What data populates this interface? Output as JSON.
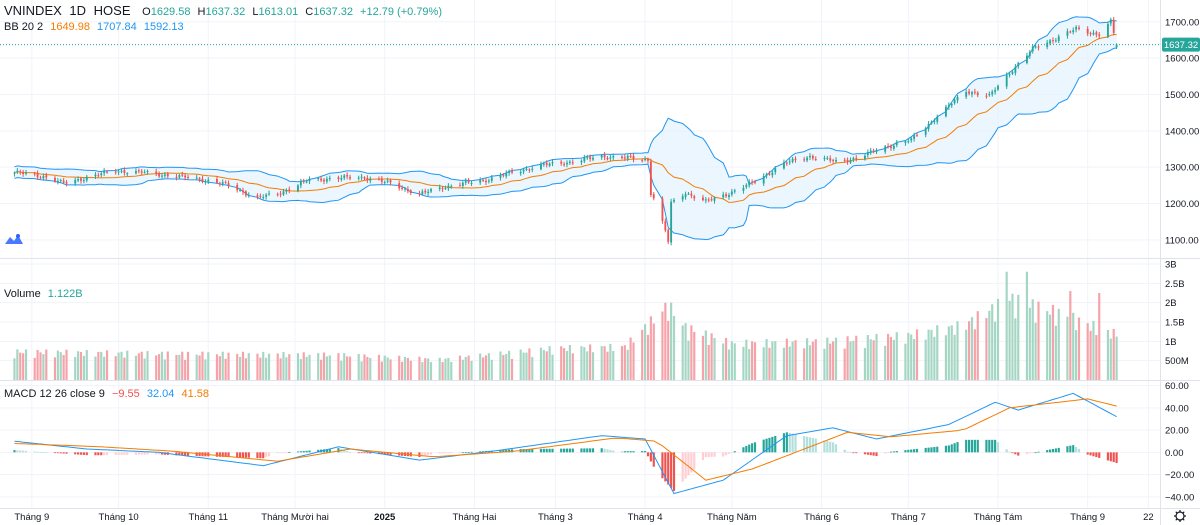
{
  "header": {
    "symbol": "VNINDEX",
    "interval": "1D",
    "exchange": "HOSE",
    "open_label": "O",
    "open": "1629.58",
    "high_label": "H",
    "high": "1637.32",
    "low_label": "L",
    "low": "1613.01",
    "close_label": "C",
    "close": "1637.32",
    "change": "+12.79 (+0.79%)"
  },
  "bb_legend": {
    "label": "BB 20 2",
    "basis": "1649.98",
    "upper": "1707.84",
    "lower": "1592.13"
  },
  "volume_legend": {
    "label": "Volume",
    "value": "1.122B"
  },
  "macd_legend": {
    "label": "MACD 12 26 close 9",
    "hist": "−9.55",
    "macd": "32.04",
    "signal": "41.58"
  },
  "last_price_tag": "1637.32",
  "colors": {
    "up": "#26a69a",
    "down": "#ef5350",
    "vol_up": "#a5d6c4",
    "vol_down": "#f5a3a8",
    "bb_band": "#2196f3",
    "bb_fill": "#e3f2fd",
    "bb_basis": "#f57c00",
    "macd_line": "#2196f3",
    "signal_line": "#f57c00",
    "hist_up_strong": "#26a69a",
    "hist_up_weak": "#b2dfdb",
    "hist_down_strong": "#ef5350",
    "hist_down_weak": "#ffcdd2",
    "grid": "#f0f3fa",
    "axis_text": "#131722"
  },
  "chart_data": [
    {
      "type": "candlestick",
      "panel": "price",
      "title": "VNINDEX",
      "ylim": [
        1050,
        1760
      ],
      "yticks": [
        1100,
        1200,
        1300,
        1400,
        1500,
        1600,
        1700
      ],
      "ytick_labels": [
        "1100.00",
        "1200.00",
        "1300.00",
        "1400.00",
        "1500.00",
        "1600.00",
        "1700.00"
      ],
      "last_price": 1637.32,
      "xticks": [
        {
          "label": "Tháng 9",
          "date": "2024-09-01"
        },
        {
          "label": "Tháng 10",
          "date": "2024-10-01"
        },
        {
          "label": "Tháng 11",
          "date": "2024-11-01"
        },
        {
          "label": "Tháng Mười hai",
          "date": "2024-12-01"
        },
        {
          "label": "2025",
          "date": "2025-01-01"
        },
        {
          "label": "Tháng Hai",
          "date": "2025-02-01"
        },
        {
          "label": "Tháng 3",
          "date": "2025-03-01"
        },
        {
          "label": "Tháng 4",
          "date": "2025-04-01"
        },
        {
          "label": "Tháng Năm",
          "date": "2025-05-01"
        },
        {
          "label": "Tháng 6",
          "date": "2025-06-01"
        },
        {
          "label": "Tháng 7",
          "date": "2025-07-01"
        },
        {
          "label": "Tháng Tám",
          "date": "2025-08-01"
        },
        {
          "label": "Tháng 9",
          "date": "2025-09-01"
        },
        {
          "label": "22",
          "date": "2025-09-22"
        }
      ],
      "close_keypoints": [
        {
          "date": "2024-08-26",
          "close": 1285
        },
        {
          "date": "2024-09-05",
          "close": 1275
        },
        {
          "date": "2024-09-12",
          "close": 1255
        },
        {
          "date": "2024-09-20",
          "close": 1272
        },
        {
          "date": "2024-09-30",
          "close": 1290
        },
        {
          "date": "2024-10-10",
          "close": 1285
        },
        {
          "date": "2024-10-21",
          "close": 1275
        },
        {
          "date": "2024-10-31",
          "close": 1265
        },
        {
          "date": "2024-11-08",
          "close": 1250
        },
        {
          "date": "2024-11-18",
          "close": 1215
        },
        {
          "date": "2024-11-26",
          "close": 1230
        },
        {
          "date": "2024-12-06",
          "close": 1265
        },
        {
          "date": "2024-12-16",
          "close": 1270
        },
        {
          "date": "2024-12-25",
          "close": 1272
        },
        {
          "date": "2025-01-03",
          "close": 1255
        },
        {
          "date": "2025-01-13",
          "close": 1225
        },
        {
          "date": "2025-01-21",
          "close": 1245
        },
        {
          "date": "2025-02-05",
          "close": 1265
        },
        {
          "date": "2025-02-14",
          "close": 1285
        },
        {
          "date": "2025-02-24",
          "close": 1305
        },
        {
          "date": "2025-03-07",
          "close": 1315
        },
        {
          "date": "2025-03-17",
          "close": 1330
        },
        {
          "date": "2025-03-26",
          "close": 1325
        },
        {
          "date": "2025-04-02",
          "close": 1320
        },
        {
          "date": "2025-04-03",
          "close": 1230
        },
        {
          "date": "2025-04-04",
          "close": 1215
        },
        {
          "date": "2025-04-08",
          "close": 1125
        },
        {
          "date": "2025-04-09",
          "close": 1095
        },
        {
          "date": "2025-04-10",
          "close": 1200
        },
        {
          "date": "2025-04-15",
          "close": 1230
        },
        {
          "date": "2025-04-22",
          "close": 1205
        },
        {
          "date": "2025-04-29",
          "close": 1225
        },
        {
          "date": "2025-05-09",
          "close": 1260
        },
        {
          "date": "2025-05-19",
          "close": 1310
        },
        {
          "date": "2025-05-28",
          "close": 1330
        },
        {
          "date": "2025-06-06",
          "close": 1315
        },
        {
          "date": "2025-06-13",
          "close": 1325
        },
        {
          "date": "2025-06-23",
          "close": 1355
        },
        {
          "date": "2025-07-02",
          "close": 1375
        },
        {
          "date": "2025-07-11",
          "close": 1440
        },
        {
          "date": "2025-07-21",
          "close": 1510
        },
        {
          "date": "2025-07-29",
          "close": 1495
        },
        {
          "date": "2025-08-05",
          "close": 1560
        },
        {
          "date": "2025-08-13",
          "close": 1625
        },
        {
          "date": "2025-08-21",
          "close": 1655
        },
        {
          "date": "2025-08-28",
          "close": 1680
        },
        {
          "date": "2025-09-05",
          "close": 1665
        },
        {
          "date": "2025-09-09",
          "close": 1700
        },
        {
          "date": "2025-09-11",
          "close": 1637.32
        }
      ],
      "last_bar": {
        "date": "2025-09-11",
        "open": 1629.58,
        "high": 1637.32,
        "low": 1613.01,
        "close": 1637.32
      },
      "bollinger": {
        "period": 20,
        "stddev": 2,
        "basis": 1649.98,
        "upper": 1707.84,
        "lower": 1592.13
      }
    },
    {
      "type": "bar",
      "panel": "volume",
      "title": "Volume",
      "ylim": [
        0,
        3000000000
      ],
      "yticks": [
        500000000,
        1000000000,
        1500000000,
        2000000000,
        2500000000,
        3000000000
      ],
      "ytick_labels": [
        "500M",
        "1B",
        "1.5B",
        "2B",
        "2.5B",
        "3B"
      ],
      "last_value": 1122000000,
      "volume_keypoints": [
        {
          "date": "2024-08-26",
          "volume": 700000000
        },
        {
          "date": "2024-10-15",
          "volume": 650000000
        },
        {
          "date": "2024-12-15",
          "volume": 620000000
        },
        {
          "date": "2025-01-20",
          "volume": 500000000
        },
        {
          "date": "2025-03-01",
          "volume": 780000000
        },
        {
          "date": "2025-03-25",
          "volume": 820000000
        },
        {
          "date": "2025-04-09",
          "volume": 1850000000
        },
        {
          "date": "2025-04-15",
          "volume": 1300000000
        },
        {
          "date": "2025-05-01",
          "volume": 900000000
        },
        {
          "date": "2025-06-01",
          "volume": 950000000
        },
        {
          "date": "2025-07-01",
          "volume": 1100000000
        },
        {
          "date": "2025-07-20",
          "volume": 1350000000
        },
        {
          "date": "2025-08-05",
          "volume": 2000000000
        },
        {
          "date": "2025-08-20",
          "volume": 1700000000
        },
        {
          "date": "2025-09-11",
          "volume": 1122000000
        }
      ],
      "spikes": [
        {
          "date": "2025-08-04",
          "volume": 2800000000
        },
        {
          "date": "2025-08-11",
          "volume": 2800000000
        },
        {
          "date": "2025-08-26",
          "volume": 2300000000
        },
        {
          "date": "2025-09-05",
          "volume": 2250000000
        }
      ]
    },
    {
      "type": "line",
      "panel": "macd",
      "title": "MACD 12 26 close 9",
      "ylim": [
        -50,
        65
      ],
      "yticks": [
        -40,
        -20,
        0,
        20,
        40,
        60
      ],
      "ytick_labels": [
        "−40.00",
        "−20.00",
        "0.00",
        "20.00",
        "40.00",
        "60.00"
      ],
      "macd_keypoints": [
        {
          "date": "2024-08-26",
          "value": 10
        },
        {
          "date": "2024-09-20",
          "value": 3
        },
        {
          "date": "2024-10-15",
          "value": 0
        },
        {
          "date": "2024-11-20",
          "value": -12
        },
        {
          "date": "2024-12-16",
          "value": 5
        },
        {
          "date": "2025-01-13",
          "value": -7
        },
        {
          "date": "2025-02-10",
          "value": 2
        },
        {
          "date": "2025-03-17",
          "value": 15
        },
        {
          "date": "2025-04-01",
          "value": 12
        },
        {
          "date": "2025-04-11",
          "value": -37
        },
        {
          "date": "2025-04-28",
          "value": -25
        },
        {
          "date": "2025-05-20",
          "value": 15
        },
        {
          "date": "2025-06-05",
          "value": 22
        },
        {
          "date": "2025-06-20",
          "value": 12
        },
        {
          "date": "2025-07-15",
          "value": 25
        },
        {
          "date": "2025-07-31",
          "value": 45
        },
        {
          "date": "2025-08-08",
          "value": 38
        },
        {
          "date": "2025-08-27",
          "value": 53
        },
        {
          "date": "2025-09-11",
          "value": 32.04
        }
      ],
      "signal_keypoints": [
        {
          "date": "2024-08-26",
          "value": 8
        },
        {
          "date": "2024-09-25",
          "value": 5
        },
        {
          "date": "2024-10-20",
          "value": 1
        },
        {
          "date": "2024-11-25",
          "value": -8
        },
        {
          "date": "2024-12-20",
          "value": 3
        },
        {
          "date": "2025-01-18",
          "value": -4
        },
        {
          "date": "2025-02-15",
          "value": 1
        },
        {
          "date": "2025-03-22",
          "value": 13
        },
        {
          "date": "2025-04-05",
          "value": 10
        },
        {
          "date": "2025-04-22",
          "value": -25
        },
        {
          "date": "2025-05-08",
          "value": -15
        },
        {
          "date": "2025-06-10",
          "value": 18
        },
        {
          "date": "2025-06-25",
          "value": 14
        },
        {
          "date": "2025-07-20",
          "value": 20
        },
        {
          "date": "2025-08-05",
          "value": 40
        },
        {
          "date": "2025-09-01",
          "value": 48
        },
        {
          "date": "2025-09-11",
          "value": 41.58
        }
      ],
      "last_hist": -9.55
    }
  ]
}
